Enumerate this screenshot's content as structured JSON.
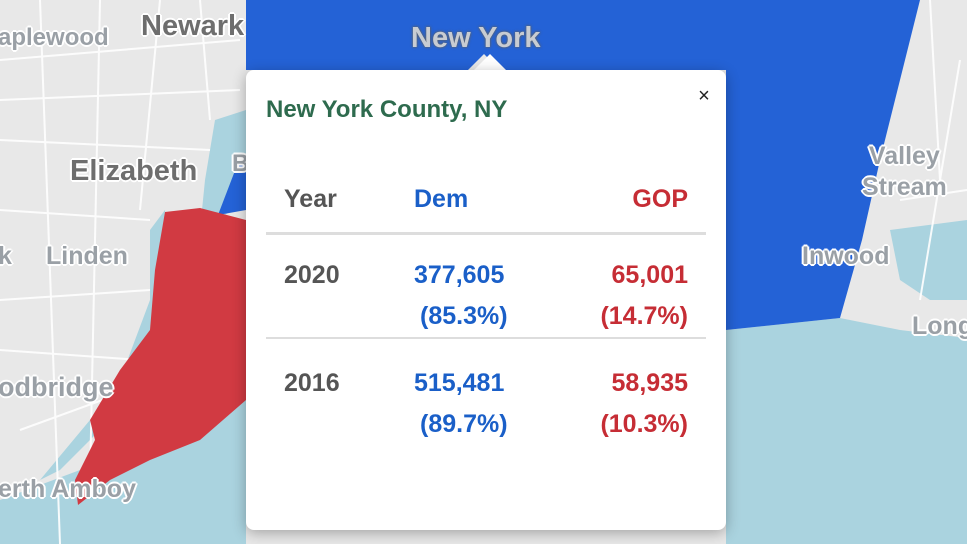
{
  "map": {
    "colors": {
      "dem": "#2462d6",
      "gop": "#d13a42",
      "water": "#aad3df",
      "land": "#e8e8e8"
    },
    "place_labels": [
      {
        "id": "maplewood",
        "text": "aplewood"
      },
      {
        "id": "newark",
        "text": "Newark"
      },
      {
        "id": "new-york",
        "text": "New York"
      },
      {
        "id": "elizabeth",
        "text": "Elizabeth"
      },
      {
        "id": "b-fragment",
        "text": "B"
      },
      {
        "id": "linden",
        "text": "Linden"
      },
      {
        "id": "k-fragment",
        "text": "k"
      },
      {
        "id": "woodbridge",
        "text": "odbridge"
      },
      {
        "id": "perth-amboy",
        "text": "erth Amboy"
      },
      {
        "id": "valley-stream",
        "text": "Valley\nStream"
      },
      {
        "id": "inwood",
        "text": "Inwood"
      },
      {
        "id": "long",
        "text": "Long"
      }
    ]
  },
  "popup": {
    "title": "New York County, NY",
    "close_glyph": "×",
    "columns": {
      "year": "Year",
      "dem": "Dem",
      "gop": "GOP"
    },
    "rows": [
      {
        "year": "2020",
        "dem_votes": "377,605",
        "dem_pct": "(85.3%)",
        "gop_votes": "65,001",
        "gop_pct": "(14.7%)"
      },
      {
        "year": "2016",
        "dem_votes": "515,481",
        "dem_pct": "(89.7%)",
        "gop_votes": "58,935",
        "gop_pct": "(10.3%)"
      }
    ]
  }
}
